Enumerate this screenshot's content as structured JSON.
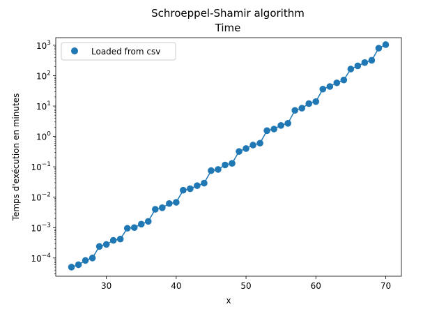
{
  "chart_data": {
    "type": "scatter",
    "title": "Schroeppel-Shamir algorithm",
    "subtitle": "Time",
    "xlabel": "x",
    "ylabel": "Temps d'exécution en minutes",
    "xlim": [
      22.75,
      72.25
    ],
    "ylim_log10": [
      -4.6,
      3.25
    ],
    "yscale": "log",
    "x_ticks": [
      30,
      40,
      50,
      60,
      70
    ],
    "y_ticks": [
      {
        "value": 0.0001,
        "base": "10",
        "exp": "−4"
      },
      {
        "value": 0.001,
        "base": "10",
        "exp": "−3"
      },
      {
        "value": 0.01,
        "base": "10",
        "exp": "−2"
      },
      {
        "value": 0.1,
        "base": "10",
        "exp": "−1"
      },
      {
        "value": 1,
        "base": "10",
        "exp": "0"
      },
      {
        "value": 10,
        "base": "10",
        "exp": "1"
      },
      {
        "value": 100,
        "base": "10",
        "exp": "2"
      },
      {
        "value": 1000,
        "base": "10",
        "exp": "3"
      }
    ],
    "legend": {
      "position": "top-left",
      "entries": [
        "Loaded from csv"
      ]
    },
    "color": "#1f77b4",
    "grid": false,
    "series": [
      {
        "name": "Loaded from csv",
        "x": [
          25,
          26,
          27,
          28,
          29,
          30,
          31,
          32,
          33,
          34,
          35,
          36,
          37,
          38,
          39,
          40,
          41,
          42,
          43,
          44,
          45,
          46,
          47,
          48,
          49,
          50,
          51,
          52,
          53,
          54,
          55,
          56,
          57,
          58,
          59,
          60,
          61,
          62,
          63,
          64,
          65,
          66,
          67,
          68,
          69,
          70
        ],
        "y": [
          5e-05,
          6e-05,
          8.3e-05,
          0.0001,
          0.00024,
          0.00028,
          0.00038,
          0.00042,
          0.00095,
          0.001,
          0.0013,
          0.0016,
          0.004,
          0.0045,
          0.0062,
          0.0068,
          0.017,
          0.019,
          0.024,
          0.029,
          0.075,
          0.082,
          0.115,
          0.13,
          0.32,
          0.4,
          0.52,
          0.6,
          1.55,
          1.75,
          2.3,
          2.7,
          7.2,
          8.5,
          12,
          14,
          36,
          44,
          58,
          72,
          165,
          210,
          270,
          320,
          800,
          1050
        ]
      }
    ]
  }
}
